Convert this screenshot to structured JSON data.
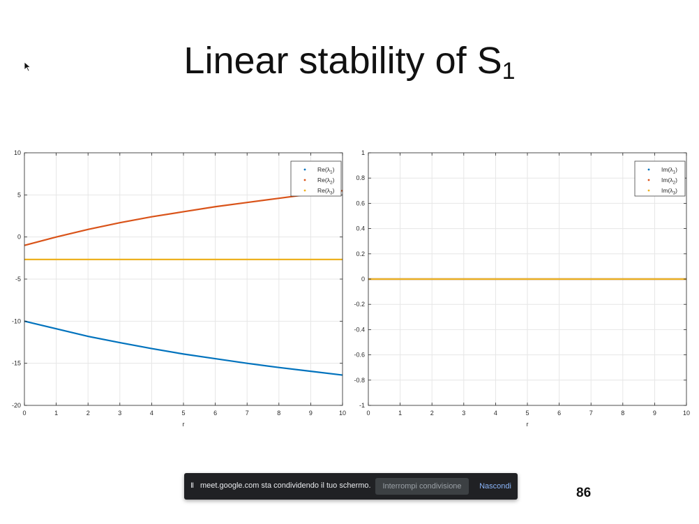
{
  "slide": {
    "title": "Linear stability of S",
    "title_subscript": "1",
    "page_number": "86"
  },
  "share_bar": {
    "pause_glyph": "II",
    "message": "meet.google.com sta condividendo il tuo schermo.",
    "stop_label": "Interrompi condivisione",
    "hide_label": "Nascondi"
  },
  "icons": {
    "cursor": "mouse-pointer-icon",
    "pause": "pause-icon"
  },
  "colors": {
    "lambda1": "#0072BD",
    "lambda2": "#D95319",
    "lambda3": "#EDB120"
  },
  "chart_data": [
    {
      "type": "line",
      "title": "",
      "xlabel": "r",
      "ylabel": "",
      "xlim": [
        0,
        10
      ],
      "ylim": [
        -20,
        10
      ],
      "xticks": [
        0,
        1,
        2,
        3,
        4,
        5,
        6,
        7,
        8,
        9,
        10
      ],
      "yticks": [
        10,
        5,
        0,
        -5,
        -10,
        -15,
        -20
      ],
      "grid": true,
      "legend_position": "top-right",
      "x": [
        0,
        1,
        2,
        3,
        4,
        5,
        6,
        7,
        8,
        9,
        10
      ],
      "series": [
        {
          "name": "Re(λ1)",
          "legend_text": "Re(λ",
          "legend_sub": "1",
          "color": "#0072BD",
          "values": [
            -10,
            -10.9,
            -11.8,
            -12.55,
            -13.25,
            -13.9,
            -14.45,
            -15,
            -15.5,
            -15.95,
            -16.4
          ]
        },
        {
          "name": "Re(λ2)",
          "legend_text": "Re(λ",
          "legend_sub": "2",
          "color": "#D95319",
          "values": [
            -1,
            0,
            0.9,
            1.7,
            2.4,
            3.0,
            3.6,
            4.1,
            4.6,
            5.1,
            5.5
          ]
        },
        {
          "name": "Re(λ3)",
          "legend_text": "Re(λ",
          "legend_sub": "3",
          "color": "#EDB120",
          "values": [
            -2.67,
            -2.67,
            -2.67,
            -2.67,
            -2.67,
            -2.67,
            -2.67,
            -2.67,
            -2.67,
            -2.67,
            -2.67
          ]
        }
      ]
    },
    {
      "type": "line",
      "title": "",
      "xlabel": "r",
      "ylabel": "",
      "xlim": [
        0,
        10
      ],
      "ylim": [
        -1,
        1
      ],
      "xticks": [
        0,
        1,
        2,
        3,
        4,
        5,
        6,
        7,
        8,
        9,
        10
      ],
      "yticks": [
        1,
        0.8,
        0.6,
        0.4,
        0.2,
        0,
        -0.2,
        -0.4,
        -0.6,
        -0.8,
        -1
      ],
      "grid": true,
      "legend_position": "top-right",
      "x": [
        0,
        1,
        2,
        3,
        4,
        5,
        6,
        7,
        8,
        9,
        10
      ],
      "series": [
        {
          "name": "Im(λ1)",
          "legend_text": "Im(λ",
          "legend_sub": "1",
          "color": "#0072BD",
          "values": [
            0,
            0,
            0,
            0,
            0,
            0,
            0,
            0,
            0,
            0,
            0
          ]
        },
        {
          "name": "Im(λ2)",
          "legend_text": "Im(λ",
          "legend_sub": "2",
          "color": "#D95319",
          "values": [
            0,
            0,
            0,
            0,
            0,
            0,
            0,
            0,
            0,
            0,
            0
          ]
        },
        {
          "name": "Im(λ3)",
          "legend_text": "Im(λ",
          "legend_sub": "3",
          "color": "#EDB120",
          "values": [
            0,
            0,
            0,
            0,
            0,
            0,
            0,
            0,
            0,
            0,
            0
          ]
        }
      ]
    }
  ]
}
